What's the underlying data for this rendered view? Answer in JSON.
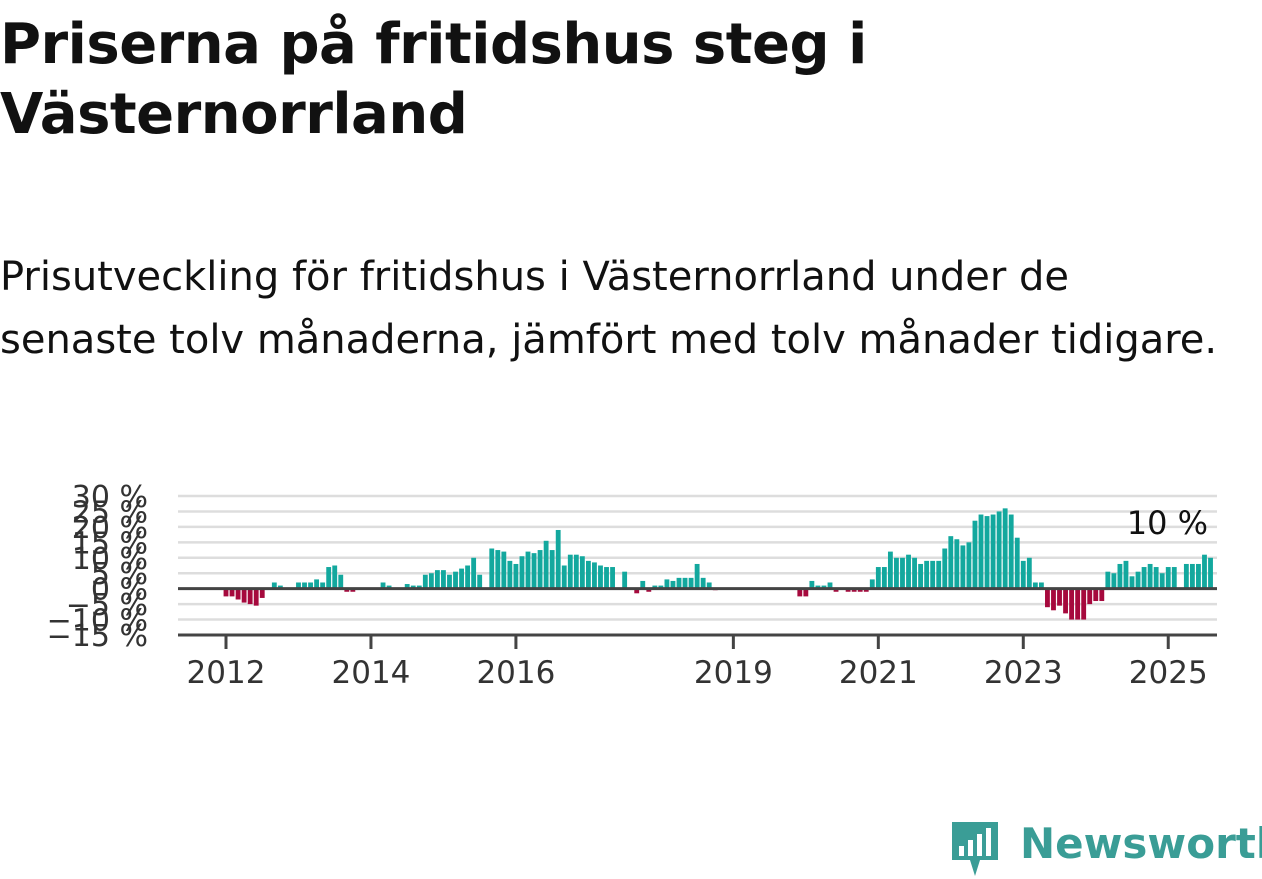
{
  "title": "Priserna på fritidshus steg i Västernorrland",
  "subtitle": "Prisutveckling för fritidshus i Västernorrland under de senaste tolv månaderna, jämfört med tolv månader tidigare.",
  "brand": {
    "name": "Newsworthy",
    "color": "#3a9d96"
  },
  "colors": {
    "positive": "#13a89e",
    "negative": "#a6093d",
    "grid": "#dddddd",
    "zero": "#444444"
  },
  "chart_data": {
    "type": "bar",
    "x_start": "2012-01",
    "frequency": "monthly",
    "values": [
      -2.5,
      -2.5,
      -3.5,
      -4.5,
      -5,
      -5.5,
      -3,
      0,
      2,
      1,
      0,
      0,
      2,
      2,
      2,
      3,
      2,
      7,
      7.5,
      4.5,
      -1,
      -1,
      0,
      0,
      0,
      0,
      2,
      1,
      0,
      0,
      1.5,
      1,
      1,
      4.5,
      5,
      6,
      6,
      4.5,
      5.5,
      6.5,
      7.5,
      10,
      4.5,
      0,
      13,
      12.5,
      12,
      9,
      8,
      10.5,
      12,
      11.5,
      12.5,
      15.5,
      12.5,
      19,
      7.5,
      11,
      11,
      10.5,
      9,
      8.5,
      7.5,
      7,
      7,
      0,
      5.5,
      0,
      -1.5,
      2.5,
      -1,
      1,
      1,
      3,
      2.5,
      3.5,
      3.5,
      3.5,
      8,
      3.5,
      2,
      -0.5,
      0,
      0,
      0,
      0,
      0,
      0,
      0,
      0,
      0,
      0,
      0,
      0,
      0,
      -2.5,
      -2.5,
      2.5,
      1,
      1,
      2,
      -1,
      0,
      -1,
      -1,
      -1,
      -1,
      3,
      7,
      7,
      12,
      10,
      10,
      11,
      10,
      8,
      9,
      9,
      9,
      13,
      17,
      16,
      14,
      15,
      22,
      24,
      23.5,
      24,
      25,
      26,
      24,
      16.5,
      9,
      10,
      2,
      2,
      -6,
      -7,
      -5.5,
      -8,
      -10,
      -10,
      -10,
      -5,
      -4,
      -4,
      5.5,
      5,
      8,
      9,
      4,
      5.5,
      7,
      8,
      7,
      5,
      7,
      7,
      0,
      8,
      8,
      8,
      11,
      10
    ],
    "ylim": [
      -15,
      30
    ],
    "yticks": [
      "30 %",
      "25 %",
      "20 %",
      "15 %",
      "10 %",
      "5 %",
      "0 %",
      "−5 %",
      "−10 %",
      "−15 %"
    ],
    "ytick_values": [
      30,
      25,
      20,
      15,
      10,
      5,
      0,
      -5,
      -10,
      -15
    ],
    "xticks": [
      "2012",
      "2014",
      "2016",
      "2019",
      "2021",
      "2023",
      "2025"
    ],
    "xtick_years": [
      2012,
      2014,
      2016,
      2019,
      2021,
      2023,
      2025
    ],
    "end_label": "10 %",
    "grid": true
  }
}
